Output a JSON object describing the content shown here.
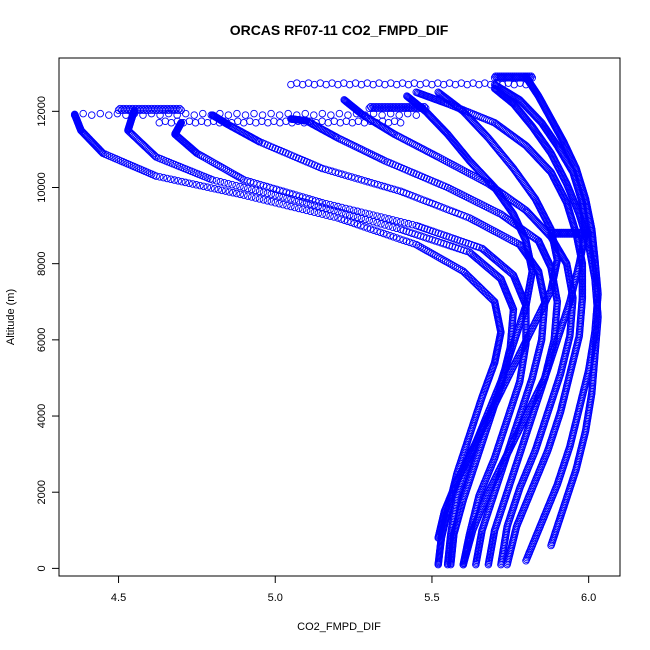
{
  "chart_data": {
    "type": "scatter",
    "title": "ORCAS RF07-11 CO2_FMPD_DIF",
    "xlabel": "CO2_FMPD_DIF",
    "ylabel": "Altitude (m)",
    "xlim": [
      4.31,
      6.1
    ],
    "ylim": [
      -200,
      13400
    ],
    "x_ticks": [
      4.5,
      5.0,
      5.5,
      6.0
    ],
    "x_tick_labels": [
      "4.5",
      "5.0",
      "5.5",
      "6.0"
    ],
    "y_ticks": [
      0,
      2000,
      4000,
      6000,
      8000,
      10000,
      12000
    ],
    "y_tick_labels": [
      "0",
      "2000",
      "4000",
      "6000",
      "8000",
      "10000",
      "12000"
    ],
    "marker": "open-circle",
    "point_color": "#0000ff",
    "series": [
      {
        "points": [
          [
            5.52,
            100
          ],
          [
            5.53,
            800
          ],
          [
            5.55,
            1500
          ],
          [
            5.58,
            2500
          ],
          [
            5.62,
            3500
          ],
          [
            5.66,
            4500
          ],
          [
            5.7,
            5400
          ],
          [
            5.72,
            6200
          ],
          [
            5.7,
            7000
          ],
          [
            5.6,
            7800
          ],
          [
            5.45,
            8500
          ],
          [
            5.2,
            9200
          ],
          [
            4.9,
            9800
          ],
          [
            4.62,
            10300
          ],
          [
            4.45,
            10900
          ],
          [
            4.38,
            11500
          ],
          [
            4.36,
            11920
          ]
        ]
      },
      {
        "points": [
          [
            5.56,
            100
          ],
          [
            5.57,
            900
          ],
          [
            5.6,
            1800
          ],
          [
            5.64,
            2800
          ],
          [
            5.68,
            3800
          ],
          [
            5.72,
            4800
          ],
          [
            5.75,
            5800
          ],
          [
            5.76,
            6800
          ],
          [
            5.72,
            7600
          ],
          [
            5.62,
            8300
          ],
          [
            5.4,
            8900
          ],
          [
            5.1,
            9600
          ],
          [
            4.8,
            10200
          ],
          [
            4.62,
            10800
          ],
          [
            4.53,
            11500
          ],
          [
            4.55,
            12020
          ]
        ]
      },
      {
        "points": [
          [
            5.6,
            100
          ],
          [
            5.62,
            900
          ],
          [
            5.65,
            1900
          ],
          [
            5.7,
            2900
          ],
          [
            5.74,
            3900
          ],
          [
            5.78,
            4900
          ],
          [
            5.8,
            5900
          ],
          [
            5.8,
            6900
          ],
          [
            5.76,
            7700
          ],
          [
            5.66,
            8400
          ],
          [
            5.45,
            9000
          ],
          [
            5.15,
            9600
          ],
          [
            4.9,
            10200
          ],
          [
            4.75,
            10900
          ],
          [
            4.68,
            11400
          ],
          [
            4.7,
            11700
          ]
        ]
      },
      {
        "points": [
          [
            5.64,
            100
          ],
          [
            5.66,
            1000
          ],
          [
            5.7,
            2000
          ],
          [
            5.74,
            3000
          ],
          [
            5.78,
            4000
          ],
          [
            5.82,
            5000
          ],
          [
            5.85,
            6000
          ],
          [
            5.86,
            7000
          ],
          [
            5.84,
            7800
          ],
          [
            5.78,
            8500
          ],
          [
            5.62,
            9200
          ],
          [
            5.4,
            9900
          ],
          [
            5.15,
            10500
          ],
          [
            4.95,
            11200
          ],
          [
            4.85,
            11650
          ],
          [
            4.8,
            11900
          ]
        ]
      },
      {
        "points": [
          [
            5.68,
            100
          ],
          [
            5.7,
            1000
          ],
          [
            5.74,
            2000
          ],
          [
            5.78,
            3000
          ],
          [
            5.82,
            4000
          ],
          [
            5.86,
            5000
          ],
          [
            5.89,
            6000
          ],
          [
            5.9,
            7000
          ],
          [
            5.88,
            7900
          ],
          [
            5.84,
            8600
          ],
          [
            5.72,
            9300
          ],
          [
            5.55,
            10000
          ],
          [
            5.35,
            10700
          ],
          [
            5.2,
            11300
          ],
          [
            5.1,
            11750
          ],
          [
            5.05,
            11800
          ]
        ]
      },
      {
        "points": [
          [
            5.72,
            100
          ],
          [
            5.74,
            1100
          ],
          [
            5.78,
            2100
          ],
          [
            5.83,
            3100
          ],
          [
            5.87,
            4100
          ],
          [
            5.91,
            5100
          ],
          [
            5.94,
            6100
          ],
          [
            5.95,
            7100
          ],
          [
            5.93,
            8000
          ],
          [
            5.88,
            8700
          ],
          [
            5.8,
            9400
          ],
          [
            5.68,
            10100
          ],
          [
            5.52,
            10800
          ],
          [
            5.38,
            11400
          ],
          [
            5.28,
            11900
          ],
          [
            5.22,
            12300
          ]
        ]
      },
      {
        "points": [
          [
            5.55,
            100
          ],
          [
            5.56,
            900
          ],
          [
            5.58,
            1900
          ],
          [
            5.62,
            2900
          ],
          [
            5.67,
            3900
          ],
          [
            5.72,
            4900
          ],
          [
            5.76,
            5900
          ],
          [
            5.8,
            6900
          ],
          [
            5.82,
            7800
          ],
          [
            5.8,
            8600
          ],
          [
            5.76,
            9300
          ],
          [
            5.7,
            10000
          ],
          [
            5.62,
            10700
          ],
          [
            5.55,
            11400
          ],
          [
            5.48,
            12000
          ],
          [
            5.42,
            12400
          ]
        ]
      },
      {
        "points": [
          [
            5.74,
            100
          ],
          [
            5.77,
            1100
          ],
          [
            5.82,
            2100
          ],
          [
            5.87,
            3100
          ],
          [
            5.91,
            4100
          ],
          [
            5.94,
            5100
          ],
          [
            5.97,
            6100
          ],
          [
            5.98,
            7100
          ],
          [
            5.98,
            8000
          ],
          [
            5.96,
            8800
          ],
          [
            5.93,
            9600
          ],
          [
            5.88,
            10400
          ],
          [
            5.8,
            11100
          ],
          [
            5.7,
            11700
          ],
          [
            5.55,
            12200
          ],
          [
            5.45,
            12500
          ]
        ]
      },
      {
        "points": [
          [
            5.6,
            100
          ],
          [
            5.63,
            1000
          ],
          [
            5.68,
            2000
          ],
          [
            5.74,
            3000
          ],
          [
            5.8,
            4000
          ],
          [
            5.86,
            5000
          ],
          [
            5.9,
            6000
          ],
          [
            5.94,
            7000
          ],
          [
            5.97,
            8000
          ],
          [
            5.99,
            8800
          ],
          [
            5.98,
            9600
          ],
          [
            5.95,
            10400
          ],
          [
            5.9,
            11100
          ],
          [
            5.85,
            11700
          ],
          [
            5.78,
            12300
          ],
          [
            5.7,
            12700
          ]
        ]
      },
      {
        "points": [
          [
            5.8,
            200
          ],
          [
            5.85,
            1200
          ],
          [
            5.9,
            2200
          ],
          [
            5.94,
            3200
          ],
          [
            5.97,
            4200
          ],
          [
            6.0,
            5200
          ],
          [
            6.02,
            6200
          ],
          [
            6.03,
            7200
          ],
          [
            6.02,
            8100
          ],
          [
            6.01,
            8900
          ],
          [
            5.99,
            9700
          ],
          [
            5.96,
            10500
          ],
          [
            5.92,
            11200
          ],
          [
            5.88,
            11800
          ],
          [
            5.84,
            12400
          ],
          [
            5.8,
            12900
          ]
        ]
      },
      {
        "points": [
          [
            5.52,
            800
          ],
          [
            5.54,
            1500
          ],
          [
            5.58,
            2300
          ],
          [
            5.64,
            3300
          ],
          [
            5.7,
            4300
          ],
          [
            5.76,
            5300
          ],
          [
            5.82,
            6300
          ],
          [
            5.88,
            7300
          ],
          [
            5.9,
            8100
          ],
          [
            5.88,
            8900
          ],
          [
            5.83,
            9700
          ],
          [
            5.76,
            10500
          ],
          [
            5.68,
            11300
          ],
          [
            5.6,
            12000
          ],
          [
            5.52,
            12500
          ]
        ]
      },
      {
        "points": [
          [
            5.88,
            600
          ],
          [
            5.92,
            1600
          ],
          [
            5.96,
            2600
          ],
          [
            5.99,
            3600
          ],
          [
            6.01,
            4600
          ],
          [
            6.02,
            5600
          ],
          [
            6.03,
            6600
          ],
          [
            6.02,
            7600
          ],
          [
            6.0,
            8500
          ],
          [
            5.97,
            9300
          ],
          [
            5.93,
            10100
          ],
          [
            5.88,
            10900
          ],
          [
            5.82,
            11600
          ],
          [
            5.76,
            12200
          ],
          [
            5.7,
            12600
          ]
        ]
      }
    ],
    "horizontal_tracks": [
      {
        "altitude": 11920,
        "x_from": 4.36,
        "x_to": 5.45
      },
      {
        "altitude": 12050,
        "x_from": 4.5,
        "x_to": 4.7
      },
      {
        "altitude": 11720,
        "x_from": 4.63,
        "x_to": 5.4
      },
      {
        "altitude": 12100,
        "x_from": 5.3,
        "x_to": 5.48
      },
      {
        "altitude": 12720,
        "x_from": 5.05,
        "x_to": 5.8
      },
      {
        "altitude": 12900,
        "x_from": 5.7,
        "x_to": 5.82
      },
      {
        "altitude": 8800,
        "x_from": 5.88,
        "x_to": 6.0
      }
    ],
    "legend": "none",
    "grid": false
  }
}
